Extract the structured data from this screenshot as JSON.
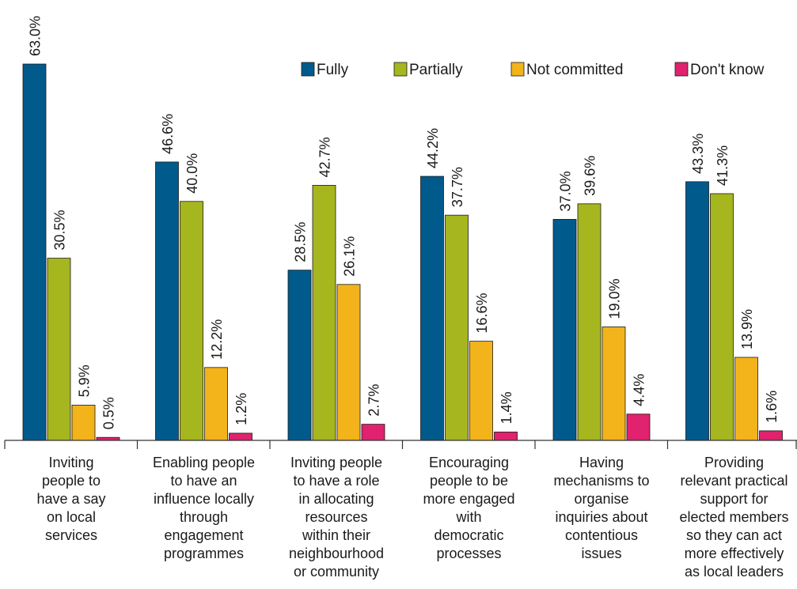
{
  "chart_data": {
    "type": "bar",
    "categories": [
      [
        "Inviting",
        "people to",
        "have a say",
        "on local",
        "services"
      ],
      [
        "Enabling people",
        "to have an",
        "influence locally",
        "through",
        "engagement",
        "programmes"
      ],
      [
        "Inviting people",
        "to have a role",
        "in allocating",
        "resources",
        "within their",
        "neighbourhood",
        "or community"
      ],
      [
        "Encouraging",
        "people to be",
        "more engaged",
        "with",
        "democratic",
        "processes"
      ],
      [
        "Having",
        "mechanisms to",
        "organise",
        "inquiries about",
        "contentious",
        "issues"
      ],
      [
        "Providing",
        "relevant practical",
        "support for",
        "elected members",
        "so they can act",
        "more effectively",
        "as local leaders"
      ]
    ],
    "series": [
      {
        "name": "Fully",
        "color": "#005a8c",
        "values": [
          63.0,
          46.6,
          28.5,
          44.2,
          37.0,
          43.3
        ],
        "labels": [
          "63.0%",
          "46.6%",
          "28.5%",
          "44.2%",
          "37.0%",
          "43.3%"
        ]
      },
      {
        "name": "Partially",
        "color": "#a6b61f",
        "values": [
          30.5,
          40.0,
          42.7,
          37.7,
          39.6,
          41.3
        ],
        "labels": [
          "30.5%",
          "40.0%",
          "42.7%",
          "37.7%",
          "39.6%",
          "41.3%"
        ]
      },
      {
        "name": "Not committed",
        "color": "#f2b31b",
        "values": [
          5.9,
          12.2,
          26.1,
          16.6,
          19.0,
          13.9
        ],
        "labels": [
          "5.9%",
          "12.2%",
          "26.1%",
          "16.6%",
          "19.0%",
          "13.9%"
        ]
      },
      {
        "name": "Don't know",
        "color": "#e0226f",
        "values": [
          0.5,
          1.2,
          2.7,
          1.4,
          4.4,
          1.6
        ],
        "labels": [
          "0.5%",
          "1.2%",
          "2.7%",
          "1.4%",
          "4.4%",
          "1.6%"
        ]
      }
    ],
    "ylim": [
      0,
      63
    ],
    "legend_position": "top-right",
    "grid": false,
    "bar_label_orientation": "vertical"
  }
}
